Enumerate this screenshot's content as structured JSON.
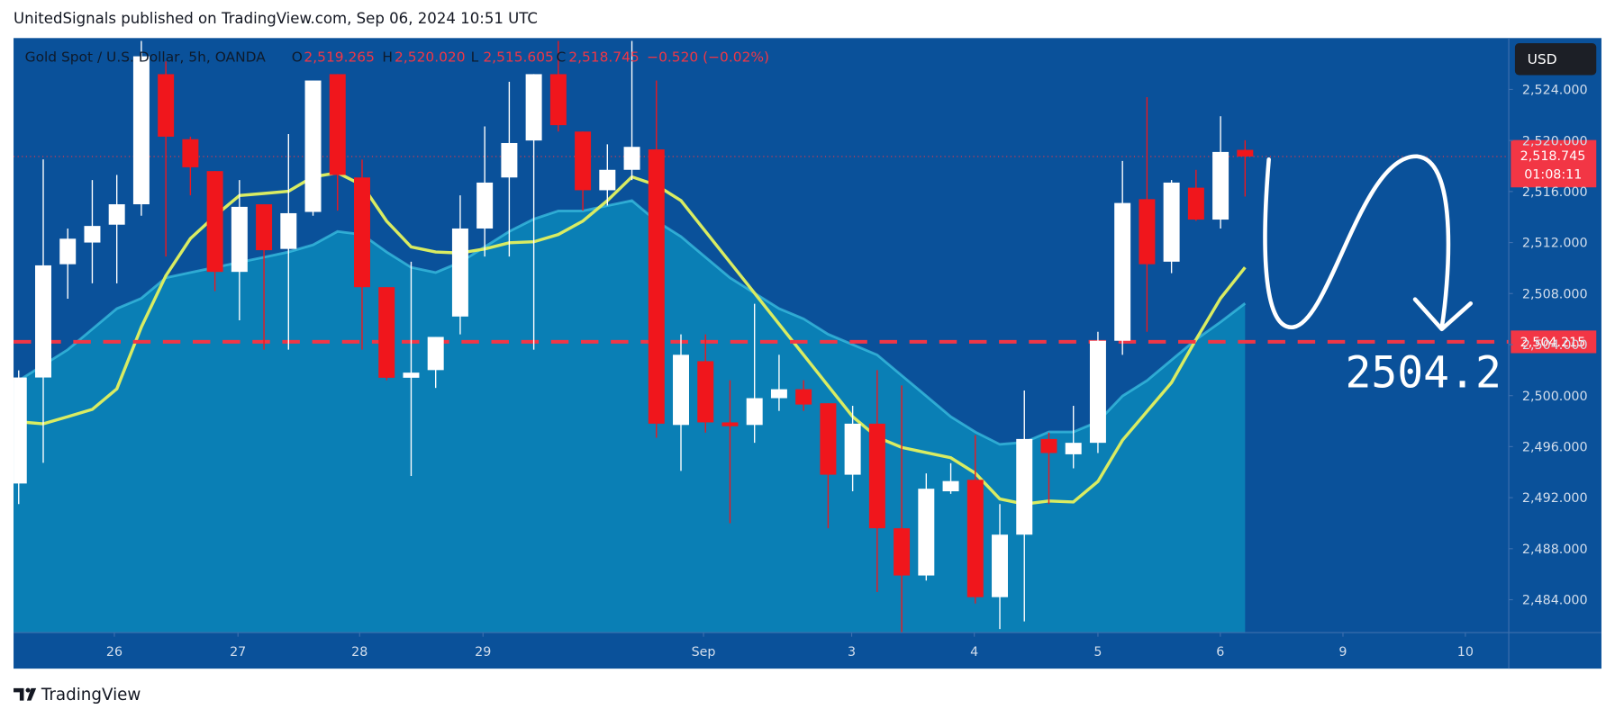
{
  "header": {
    "title": "UnitedSignals published on TradingView.com, Sep 06, 2024 10:51 UTC"
  },
  "footer": {
    "brand": "TradingView"
  },
  "currency_button": "USD",
  "chart_data": {
    "type": "candlestick",
    "title": "Gold Spot / U.S. Dollar, 5h, OANDA",
    "legend_items": [
      {
        "label": "O",
        "value": "2,519.265"
      },
      {
        "label": "H",
        "value": "2,520.020"
      },
      {
        "label": "L",
        "value": "2,515.605"
      },
      {
        "label": "C",
        "value": "2,518.745"
      }
    ],
    "change": "−0.520 (−0.02%)",
    "up_color": "#ffffff",
    "down_color": "#f0161c",
    "open": [
      2493.11,
      2501.42,
      2510.3,
      2512.0,
      2513.4,
      2515.0,
      2525.2,
      2520.1,
      2517.6,
      2509.7,
      2515.0,
      2511.5,
      2514.4,
      2525.2,
      2517.1,
      2508.5,
      2501.4,
      2502.0,
      2506.2,
      2513.1,
      2517.1,
      2520.0,
      2525.2,
      2520.7,
      2516.1,
      2517.7,
      2519.3,
      2497.7,
      2502.7,
      2497.9,
      2497.7,
      2499.8,
      2500.5,
      2499.4,
      2493.8,
      2497.8,
      2489.6,
      2485.9,
      2492.5,
      2493.4,
      2484.2,
      2489.1,
      2496.6,
      2495.4,
      2496.3,
      2504.3,
      2515.4,
      2510.5,
      2516.3,
      2513.8,
      2519.265
    ],
    "high": [
      2501.98,
      2518.52,
      2513.1,
      2516.9,
      2517.3,
      2527.8,
      2526.2,
      2520.3,
      2517.6,
      2516.9,
      2515.0,
      2520.5,
      2524.7,
      2525.2,
      2518.5,
      2508.5,
      2510.5,
      2504.6,
      2515.7,
      2521.1,
      2524.6,
      2525.2,
      2527.8,
      2520.7,
      2519.7,
      2527.8,
      2524.7,
      2504.8,
      2504.8,
      2501.2,
      2507.2,
      2503.2,
      2501.2,
      2499.4,
      2499.2,
      2502.0,
      2500.8,
      2493.9,
      2494.7,
      2496.9,
      2491.5,
      2500.4,
      2497.1,
      2499.2,
      2505.0,
      2518.4,
      2523.4,
      2516.9,
      2517.7,
      2521.9,
      2520.02
    ],
    "low": [
      2491.5,
      2494.73,
      2507.6,
      2508.8,
      2508.8,
      2514.1,
      2510.9,
      2515.7,
      2508.2,
      2505.9,
      2503.6,
      2503.6,
      2514.1,
      2514.5,
      2503.6,
      2501.2,
      2493.7,
      2500.6,
      2504.8,
      2510.9,
      2510.9,
      2503.6,
      2520.7,
      2514.5,
      2514.9,
      2516.9,
      2496.7,
      2494.1,
      2497.1,
      2490.0,
      2496.3,
      2498.8,
      2498.8,
      2489.6,
      2492.5,
      2484.6,
      2481.4,
      2485.5,
      2492.3,
      2483.7,
      2481.7,
      2482.3,
      2491.5,
      2494.3,
      2495.5,
      2503.2,
      2505.0,
      2509.6,
      2513.7,
      2513.1,
      2515.605
    ],
    "close": [
      2501.42,
      2510.21,
      2512.3,
      2513.3,
      2515.0,
      2526.6,
      2520.3,
      2517.9,
      2509.7,
      2514.8,
      2511.4,
      2514.3,
      2524.7,
      2517.3,
      2508.5,
      2501.4,
      2501.8,
      2504.6,
      2513.1,
      2516.7,
      2519.8,
      2525.2,
      2521.2,
      2516.1,
      2517.7,
      2519.5,
      2497.8,
      2503.2,
      2497.9,
      2497.6,
      2499.8,
      2500.5,
      2499.3,
      2493.8,
      2497.8,
      2489.6,
      2485.9,
      2492.7,
      2493.3,
      2484.2,
      2489.1,
      2496.6,
      2495.5,
      2496.3,
      2504.3,
      2515.1,
      2510.3,
      2516.7,
      2513.8,
      2519.1,
      2518.745
    ],
    "overlays": [
      {
        "color": "#3ec6e6",
        "fill": "#0a87ba",
        "values": [
          2501.18,
          2502.39,
          2503.6,
          2505.21,
          2506.82,
          2507.63,
          2509.24,
          2509.65,
          2510.05,
          2510.45,
          2510.85,
          2511.26,
          2511.82,
          2512.87,
          2512.63,
          2511.26,
          2510.05,
          2509.65,
          2510.45,
          2511.66,
          2512.87,
          2513.84,
          2514.48,
          2514.48,
          2514.89,
          2515.29,
          2513.68,
          2512.47,
          2510.85,
          2509.24,
          2508.03,
          2506.82,
          2506.02,
          2504.81,
          2504.0,
          2503.19,
          2501.58,
          2499.97,
          2498.35,
          2497.15,
          2496.18,
          2496.34,
          2497.15,
          2497.15,
          2497.95,
          2499.97,
          2501.18,
          2502.79,
          2504.4,
          2505.77,
          2507.23
        ]
      },
      {
        "color": "#d9ec62",
        "values": [
          2497.95,
          2497.79,
          2498.35,
          2498.92,
          2500.53,
          2505.37,
          2509.4,
          2512.31,
          2514.08,
          2515.69,
          2515.85,
          2516.02,
          2517.15,
          2517.47,
          2516.5,
          2513.68,
          2511.66,
          2511.26,
          2511.18,
          2511.5,
          2511.98,
          2512.06,
          2512.63,
          2513.68,
          2515.29,
          2517.15,
          2516.5,
          2515.29,
          2512.87,
          2510.45,
          2508.03,
          2505.61,
          2503.19,
          2500.77,
          2498.35,
          2496.74,
          2495.94,
          2495.53,
          2495.13,
          2493.92,
          2491.9,
          2491.5,
          2491.74,
          2491.66,
          2493.27,
          2496.5,
          2498.76,
          2501.02,
          2504.4,
          2507.63,
          2510.05
        ]
      }
    ],
    "hlines": [
      {
        "value": 2504.215,
        "label": "2,504.215",
        "color": "#f23645"
      }
    ],
    "last_price_label": "2,518.745",
    "countdown": "01:08:11",
    "annotation": "2504.2",
    "xlim": [
      -0.21,
      60.75
    ],
    "ylim": [
      2481.42,
      2528.03
    ],
    "xticks": [
      {
        "value": 3.9,
        "label": "26"
      },
      {
        "value": 8.94,
        "label": "27"
      },
      {
        "value": 13.9,
        "label": "28"
      },
      {
        "value": 18.93,
        "label": "29"
      },
      {
        "value": 27.92,
        "label": "Sep"
      },
      {
        "value": 33.96,
        "label": "3"
      },
      {
        "value": 38.96,
        "label": "4"
      },
      {
        "value": 44.0,
        "label": "5"
      },
      {
        "value": 48.99,
        "label": "6"
      },
      {
        "value": 53.99,
        "label": "9"
      },
      {
        "value": 58.98,
        "label": "10"
      }
    ],
    "yticks": [
      {
        "value": 2484,
        "label": "2,484.000"
      },
      {
        "value": 2488,
        "label": "2,488.000"
      },
      {
        "value": 2492,
        "label": "2,492.000"
      },
      {
        "value": 2496,
        "label": "2,496.000"
      },
      {
        "value": 2500,
        "label": "2,500.000"
      },
      {
        "value": 2504,
        "label": "2,504.000"
      },
      {
        "value": 2508,
        "label": "2,508.000"
      },
      {
        "value": 2512,
        "label": "2,512.000"
      },
      {
        "value": 2516,
        "label": "2,516.000"
      },
      {
        "value": 2520,
        "label": "2,520.000"
      },
      {
        "value": 2524,
        "label": "2,524.000"
      }
    ],
    "grid": false
  }
}
